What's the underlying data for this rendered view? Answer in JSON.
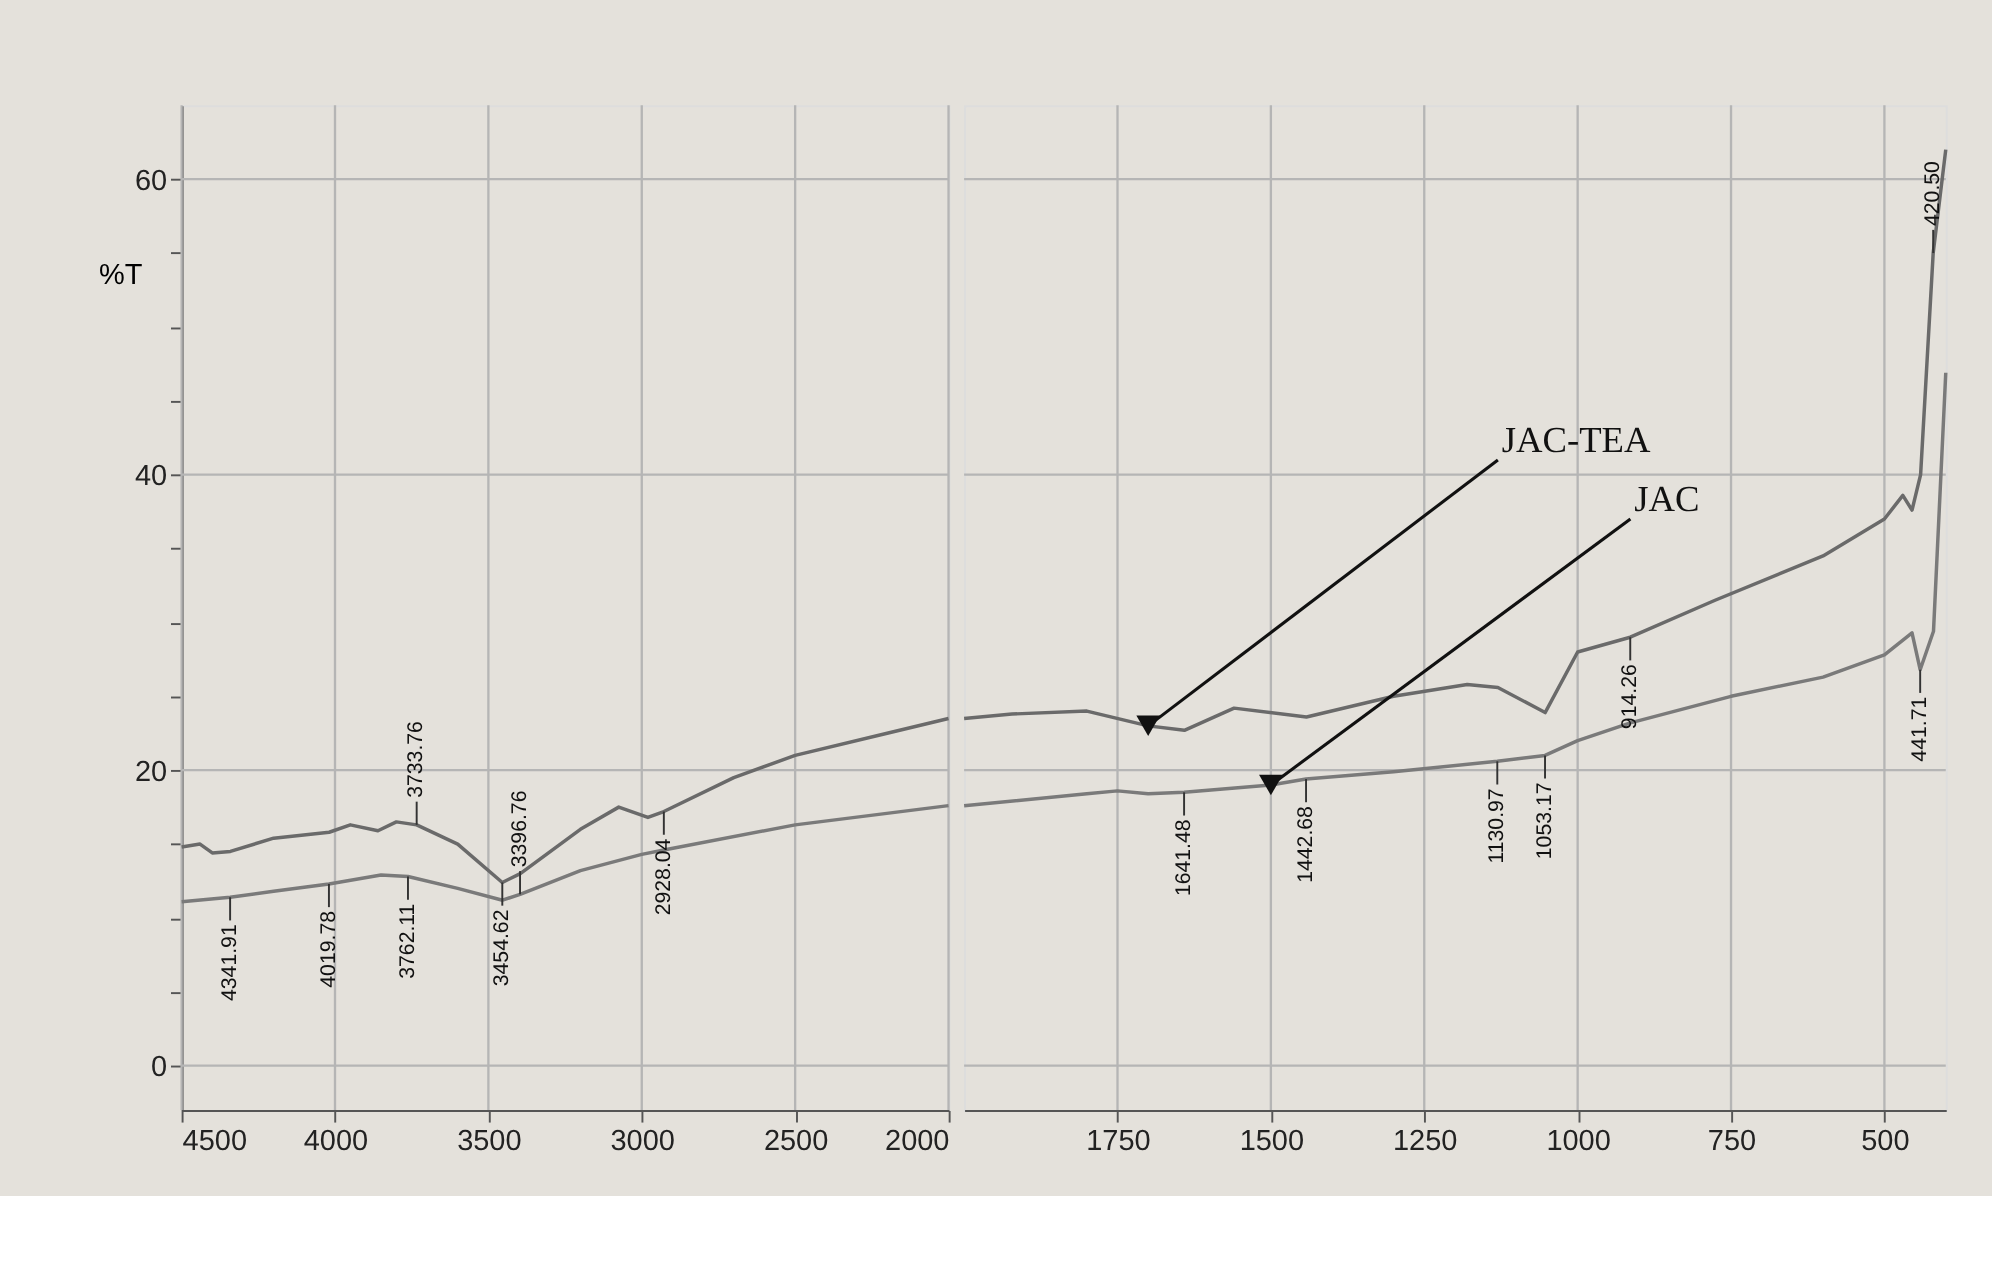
{
  "chart_data": [
    {
      "type": "line",
      "ylabel": "%T",
      "xlim": [
        4500,
        2000
      ],
      "xticks": [
        4500,
        4000,
        3500,
        3000,
        2500,
        2000
      ],
      "ylim": [
        -3,
        65
      ],
      "yticks": [
        0,
        {
          "value": 5,
          "label": null
        },
        {
          "value": 10,
          "label": null
        },
        {
          "value": 15,
          "label": null
        },
        20,
        {
          "value": 25,
          "label": null
        },
        {
          "value": 30,
          "label": null
        },
        {
          "value": 35,
          "label": null
        },
        40,
        {
          "value": 45,
          "label": null
        },
        {
          "value": 50,
          "label": null
        },
        {
          "value": 55,
          "label": null
        },
        60
      ],
      "grid": true,
      "marker": "none",
      "line_style": "solid",
      "series": [
        {
          "color": "#6a6a6a",
          "x": [
            4500,
            4440,
            4400,
            4341,
            4200,
            4019,
            3950,
            3860,
            3800,
            3733.76,
            3600,
            3454.62,
            3396,
            3200,
            3075,
            2980,
            2928.04,
            2700,
            2500,
            2200,
            2000
          ],
          "values": [
            14.8,
            15.0,
            14.4,
            14.5,
            15.4,
            15.8,
            16.3,
            15.9,
            16.5,
            16.3,
            15.0,
            12.4,
            13.0,
            16.0,
            17.5,
            16.8,
            17.2,
            19.5,
            21.0,
            22.5,
            23.5
          ]
        },
        {
          "color": "#7a7a7a",
          "x": [
            4500,
            4341.91,
            4200,
            4019.78,
            3850,
            3762.11,
            3600,
            3454,
            3396.76,
            3200,
            3000,
            2928,
            2500,
            2000
          ],
          "values": [
            11.1,
            11.4,
            11.8,
            12.3,
            12.9,
            12.8,
            12.0,
            11.2,
            11.6,
            13.2,
            14.3,
            14.6,
            16.3,
            17.6
          ]
        }
      ],
      "annotations": [
        {
          "text": "4341.91",
          "x": 4341.91,
          "y": 11.4
        },
        {
          "text": "4019.78",
          "x": 4019.78,
          "y": 12.3
        },
        {
          "text": "3762.11",
          "x": 3762.11,
          "y": 12.8
        },
        {
          "text": "3733.76",
          "x": 3733.76,
          "y": 16.3
        },
        {
          "text": "3454.62",
          "x": 3454.62,
          "y": 12.4
        },
        {
          "text": "3396.76",
          "x": 3396.76,
          "y": 11.6
        },
        {
          "text": "2928.04",
          "x": 2928.04,
          "y": 17.2
        }
      ]
    },
    {
      "type": "line",
      "xlim": [
        2000,
        400
      ],
      "xticks": [
        1750,
        1500,
        1250,
        1000,
        750,
        500
      ],
      "ylim": [
        -3,
        65
      ],
      "yticks": [
        0,
        20,
        40,
        60
      ],
      "tick_labels": "x",
      "grid": true,
      "marker": "none",
      "line_style": "solid",
      "series": [
        {
          "name": "JAC-TEA",
          "color": "#6a6a6a",
          "x": [
            2000,
            1922,
            1800,
            1700,
            1641,
            1560,
            1442,
            1300,
            1180,
            1130,
            1053,
            1000,
            914.26,
            776,
            600,
            500,
            470,
            455,
            441,
            420.5,
            400
          ],
          "values": [
            23.5,
            23.8,
            24.0,
            23.0,
            22.7,
            24.2,
            23.6,
            25.0,
            25.8,
            25.6,
            23.9,
            28.0,
            29.0,
            31.5,
            34.5,
            37.0,
            38.6,
            37.6,
            40.0,
            55.0,
            62.0
          ]
        },
        {
          "name": "JAC",
          "color": "#7a7a7a",
          "x": [
            2000,
            1800,
            1750,
            1700,
            1641.48,
            1500,
            1442.68,
            1300,
            1130.97,
            1053.17,
            1000,
            914,
            750,
            600,
            500,
            455,
            441.71,
            420,
            400
          ],
          "values": [
            17.6,
            18.4,
            18.6,
            18.4,
            18.5,
            19.0,
            19.4,
            19.9,
            20.6,
            21.0,
            22.0,
            23.2,
            25.0,
            26.3,
            27.8,
            29.3,
            26.8,
            29.4,
            46.9
          ]
        }
      ],
      "annotations": [
        {
          "text": "1641.48",
          "x": 1641.48,
          "y": 18.5
        },
        {
          "text": "1442.68",
          "x": 1442.68,
          "y": 19.4
        },
        {
          "text": "1130.97",
          "x": 1130.97,
          "y": 20.6
        },
        {
          "text": "1053.17",
          "x": 1053.17,
          "y": 21.0
        },
        {
          "text": "914.26",
          "x": 914.26,
          "y": 29.0
        },
        {
          "text": "441.71",
          "x": 441.71,
          "y": 26.8
        },
        {
          "text": "420.50",
          "x": 420.5,
          "y": 55.0
        }
      ]
    }
  ]
}
